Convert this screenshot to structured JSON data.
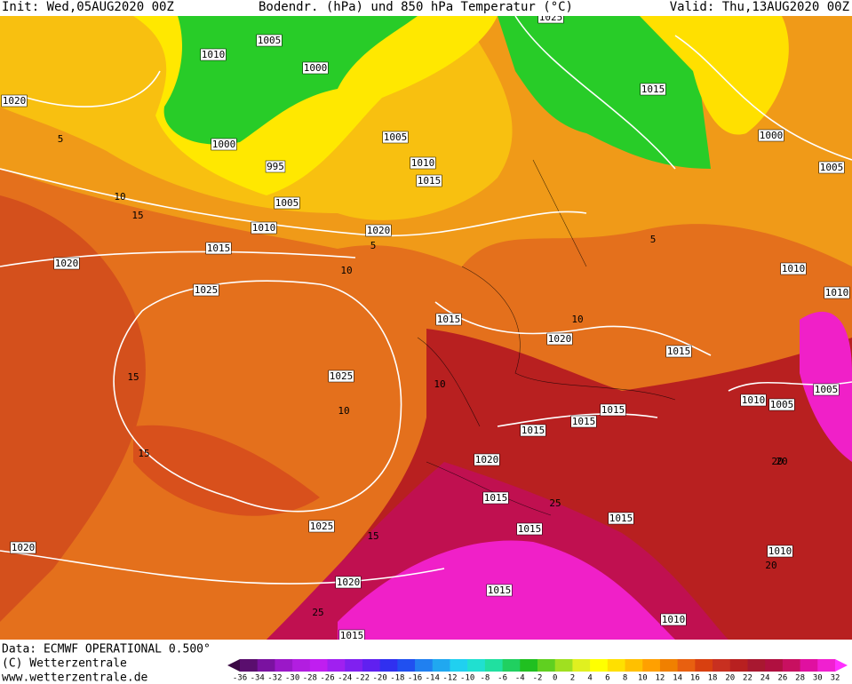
{
  "header": {
    "init": "Init: Wed,05AUG2020 00Z",
    "title": "Bodendr. (hPa) und 850 hPa Temperatur (°C)",
    "valid": "Valid: Thu,13AUG2020 00Z"
  },
  "footer": {
    "data": "Data: ECMWF OPERATIONAL 0.500°",
    "copyright": "(C) Wetterzentrale",
    "url": "www.wetterzentrale.de"
  },
  "colorbar": {
    "labels": [
      -36,
      -34,
      -32,
      -30,
      -28,
      -26,
      -24,
      -22,
      -20,
      -18,
      -16,
      -14,
      -12,
      -10,
      -8,
      -6,
      -4,
      -2,
      0,
      2,
      4,
      6,
      8,
      10,
      12,
      14,
      16,
      18,
      20,
      22,
      24,
      26,
      28,
      30,
      32
    ],
    "colors": [
      "#3b0a45",
      "#5a0e6e",
      "#7a12a0",
      "#9b18c8",
      "#b21ee0",
      "#c01ef0",
      "#a020f0",
      "#8020f0",
      "#6020f0",
      "#3030f0",
      "#2050f0",
      "#2080f0",
      "#20a8f0",
      "#20d0f0",
      "#20e0d0",
      "#20e0a0",
      "#20d060",
      "#20c020",
      "#60d020",
      "#a0e020",
      "#e0f020",
      "#ffff00",
      "#ffe000",
      "#ffc000",
      "#ffa000",
      "#f08000",
      "#e86010",
      "#d84010",
      "#c83020",
      "#b82020",
      "#a81830",
      "#b01040",
      "#c81060",
      "#e010a0",
      "#f020d0",
      "#ff30ff"
    ]
  },
  "isobar_labels": [
    "1005",
    "1010",
    "1000",
    "1020",
    "1000",
    "1005",
    "995",
    "1010",
    "1015",
    "1005",
    "1010",
    "1020",
    "1015",
    "1020",
    "1025",
    "1015",
    "1020",
    "1015",
    "1025",
    "1015",
    "1015",
    "1015",
    "1010",
    "1005",
    "1005",
    "1020",
    "1015",
    "1015",
    "1015",
    "1025",
    "1020",
    "1020",
    "1015",
    "1010",
    "1010",
    "1015",
    "1000",
    "1005",
    "1010",
    "1010",
    "1025",
    "1015"
  ],
  "isotherm_labels": [
    "5",
    "10",
    "15",
    "10",
    "15",
    "10",
    "15",
    "10",
    "15",
    "20",
    "25",
    "25",
    "20",
    "10",
    "5",
    "5",
    "20"
  ]
}
